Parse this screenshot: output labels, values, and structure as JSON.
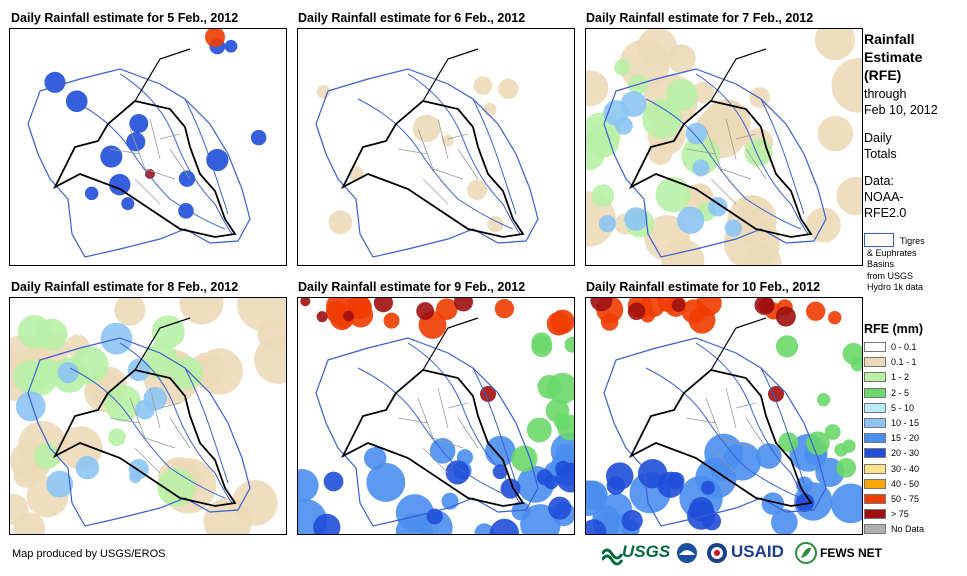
{
  "panels": [
    {
      "title": "Daily Rainfall estimate for 5 Feb., 2012",
      "level": 1
    },
    {
      "title": "Daily Rainfall estimate for 6 Feb., 2012",
      "level": 0
    },
    {
      "title": "Daily Rainfall estimate for 7 Feb., 2012",
      "level": 2
    },
    {
      "title": "Daily Rainfall estimate for 8 Feb., 2012",
      "level": 2
    },
    {
      "title": "Daily Rainfall estimate for 9 Feb., 2012",
      "level": 3
    },
    {
      "title": "Daily Rainfall estimate for 10 Feb., 2012",
      "level": 3
    }
  ],
  "sidebar": {
    "title_lines": [
      "Rainfall",
      "Estimate",
      "(RFE)"
    ],
    "through": "through",
    "date": "Feb 10, 2012",
    "daily_lines": [
      "Daily",
      "Totals"
    ],
    "data_lines": [
      "Data:",
      "NOAA-",
      "RFE2.0"
    ],
    "basin_lines": [
      "Tigres",
      "& Euphrates",
      "Basins",
      "from USGS",
      "Hydro 1k data"
    ]
  },
  "legend": {
    "title": "RFE (mm)",
    "items": [
      {
        "label": "0 - 0.1",
        "color": "#ffffff"
      },
      {
        "label": "0.1 - 1",
        "color": "#ecd9b8"
      },
      {
        "label": "1 - 2",
        "color": "#b8f0a6"
      },
      {
        "label": "2 - 5",
        "color": "#6ad86a"
      },
      {
        "label": "5 - 10",
        "color": "#b8ecf8"
      },
      {
        "label": "10 - 15",
        "color": "#8cc4f4"
      },
      {
        "label": "15 - 20",
        "color": "#4a8ef0"
      },
      {
        "label": "20 - 30",
        "color": "#1f4ed8"
      },
      {
        "label": "30 - 40",
        "color": "#ffe28a"
      },
      {
        "label": "40 - 50",
        "color": "#ffa600"
      },
      {
        "label": "50 - 75",
        "color": "#f03c00"
      },
      {
        "label": "> 75",
        "color": "#a01010"
      },
      {
        "label": "No Data",
        "color": "#b0b0b0"
      }
    ]
  },
  "footer": {
    "credit": "Map produced by USGS/EROS",
    "logos": [
      "USGS",
      "NOAA",
      "USAID",
      "FEWS NET"
    ]
  }
}
